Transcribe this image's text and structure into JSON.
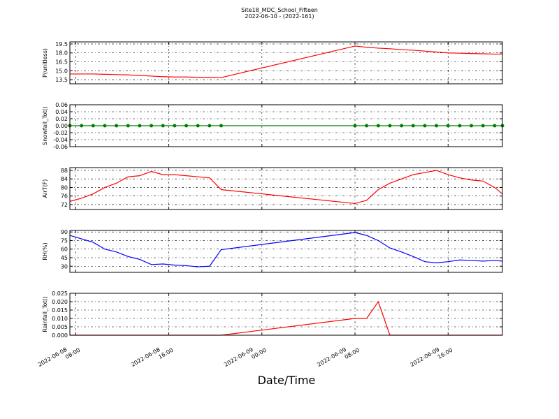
{
  "chart_data": {
    "type": "line",
    "title": "Site18_MDC_School_Fifteen",
    "subtitle": "2022-06-10 - (2022-161)",
    "xlabel": "Date/Time",
    "grid": true,
    "x": [
      "2022-06-08 07:30",
      "2022-06-08 08:30",
      "2022-06-08 09:30",
      "2022-06-08 10:30",
      "2022-06-08 11:30",
      "2022-06-08 12:30",
      "2022-06-08 13:30",
      "2022-06-08 14:30",
      "2022-06-08 15:30",
      "2022-06-08 16:30",
      "2022-06-08 17:30",
      "2022-06-08 18:30",
      "2022-06-08 19:30",
      "2022-06-08 20:30",
      "2022-06-09 08:00",
      "2022-06-09 09:00",
      "2022-06-09 10:00",
      "2022-06-09 11:00",
      "2022-06-09 12:00",
      "2022-06-09 13:00",
      "2022-06-09 14:00",
      "2022-06-09 15:00",
      "2022-06-09 16:00",
      "2022-06-09 17:00",
      "2022-06-09 18:00",
      "2022-06-09 19:00",
      "2022-06-09 20:00",
      "2022-06-09 20:40"
    ],
    "xlim": [
      "2022-06-08 07:30",
      "2022-06-09 20:40"
    ],
    "xticks": [
      {
        "value": "2022-06-08 08:00",
        "label": "2022-06-08\n08:00"
      },
      {
        "value": "2022-06-08 16:00",
        "label": "2022-06-08\n16:00"
      },
      {
        "value": "2022-06-09 00:00",
        "label": "2022-06-09\n00:00"
      },
      {
        "value": "2022-06-09 08:00",
        "label": "2022-06-09\n08:00"
      },
      {
        "value": "2022-06-09 16:00",
        "label": "2022-06-09\n16:00"
      }
    ],
    "panels": [
      {
        "ylabel": "P(unitless)",
        "color": "#ff0000",
        "marker": false,
        "values": [
          14.45,
          14.45,
          14.45,
          14.4,
          14.35,
          14.3,
          14.2,
          14.1,
          14.0,
          13.95,
          13.95,
          13.9,
          13.9,
          13.85,
          19.15,
          18.95,
          18.8,
          18.7,
          18.55,
          18.45,
          18.3,
          18.15,
          18.0,
          17.95,
          17.9,
          17.85,
          17.8,
          17.8
        ],
        "ylim": [
          12.8,
          19.85
        ],
        "yticks": [
          13.5,
          {
            "value": 15,
            "label": "15.0"
          },
          16.5,
          {
            "value": 18,
            "label": "18.0"
          },
          19.5
        ]
      },
      {
        "ylabel": "Snowfall_Tot()",
        "color": "#008000",
        "marker": true,
        "values": [
          0,
          0,
          0,
          0,
          0,
          0,
          0,
          0,
          0,
          0,
          0,
          0,
          0,
          0,
          0,
          0,
          0,
          0,
          0,
          0,
          0,
          0,
          0,
          0,
          0,
          0,
          0,
          0
        ],
        "ylim": [
          -0.06,
          0.06
        ],
        "yticks": [
          -0.06,
          -0.04,
          -0.02,
          {
            "value": 0,
            "label": "0.00"
          },
          0.02,
          0.04,
          0.06
        ]
      },
      {
        "ylabel": "AirT(F)",
        "color": "#ff0000",
        "marker": false,
        "values": [
          73.5,
          75,
          77,
          80,
          82,
          85,
          85.5,
          87.5,
          86,
          86,
          85.5,
          85,
          84.5,
          79,
          72.5,
          74,
          79,
          82,
          84,
          86,
          87,
          88,
          86,
          84.5,
          83.5,
          83,
          80,
          77
        ],
        "ylim": [
          69.7,
          89.3
        ],
        "yticks": [
          72,
          76,
          80,
          84,
          88
        ]
      },
      {
        "ylabel": "RH(%)",
        "color": "#0000ff",
        "marker": false,
        "values": [
          84,
          78,
          72,
          60,
          55,
          47,
          42,
          33,
          34,
          32,
          31,
          29,
          30,
          59,
          89,
          84,
          75,
          62,
          55,
          47,
          38,
          36,
          38,
          41,
          40,
          39,
          40,
          39
        ],
        "ylim": [
          19.3,
          92.7
        ],
        "yticks": [
          30,
          45,
          60,
          75,
          90
        ]
      },
      {
        "ylabel": "Rainfall_Tot()",
        "color": "#ff0000",
        "marker": false,
        "values": [
          0,
          0,
          0,
          0,
          0,
          0,
          0,
          0,
          0,
          0,
          0,
          0,
          0,
          0,
          0.01,
          0.01,
          0.02,
          0,
          0,
          0,
          0,
          0,
          0,
          0,
          0,
          0,
          0,
          0
        ],
        "ylim": [
          0,
          0.025
        ],
        "yticks": [
          {
            "value": 0,
            "label": "0.000"
          },
          0.005,
          {
            "value": 0.01,
            "label": "0.010"
          },
          0.015,
          {
            "value": 0.02,
            "label": "0.020"
          },
          0.025
        ]
      }
    ]
  }
}
